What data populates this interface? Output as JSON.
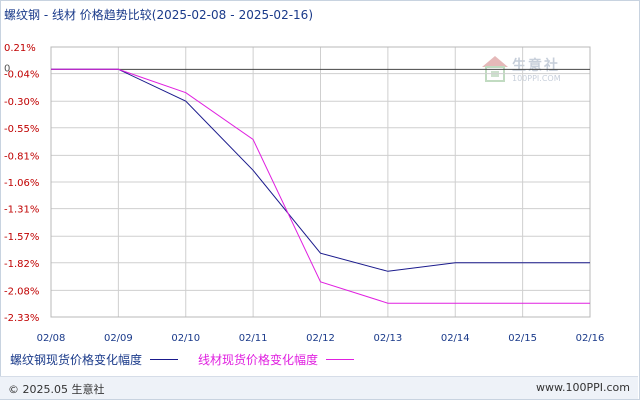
{
  "title": {
    "text": "螺纹钢 - 线材 价格趋势比较",
    "range_start": "2025-02-08",
    "range_end": "2025-02-16",
    "range_sep": "-"
  },
  "watermark": {
    "brand": "生意社",
    "url": "100PPI.COM"
  },
  "footer": {
    "copyright": "© 2025.05 生意社",
    "url": "www.100PPI.com"
  },
  "chart_data": {
    "type": "line",
    "x": [
      "02/08",
      "02/09",
      "02/10",
      "02/11",
      "02/12",
      "02/13",
      "02/14",
      "02/15",
      "02/16"
    ],
    "y_ticks": [
      "0.21%",
      "-0.04%",
      "-0.30%",
      "-0.55%",
      "-0.81%",
      "-1.06%",
      "-1.31%",
      "-1.57%",
      "-1.82%",
      "-2.08%",
      "-2.33%"
    ],
    "y_tick_values": [
      0.21,
      -0.04,
      -0.3,
      -0.55,
      -0.81,
      -1.06,
      -1.31,
      -1.57,
      -1.82,
      -2.08,
      -2.33
    ],
    "zero_label": "0",
    "ylim": [
      -2.33,
      0.21
    ],
    "grid": true,
    "legend_position": "bottom",
    "series": [
      {
        "name": "螺纹钢现货价格变化幅度",
        "color": "#1a1a8c",
        "values": [
          0,
          0,
          -0.3,
          -0.95,
          -1.73,
          -1.9,
          -1.82,
          -1.82,
          -1.82
        ]
      },
      {
        "name": "线材现货价格变化幅度",
        "color": "#e020e0",
        "values": [
          0,
          0,
          -0.22,
          -0.66,
          -2.0,
          -2.2,
          -2.2,
          -2.2,
          -2.2
        ]
      }
    ]
  }
}
